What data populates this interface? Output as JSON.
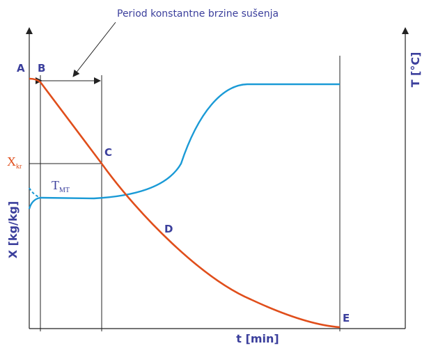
{
  "annotation": "Period konstantne brzine sušenja",
  "points": [
    {
      "label": "A"
    },
    {
      "label": "B"
    },
    {
      "label": "C"
    },
    {
      "label": "D"
    },
    {
      "label": "E"
    }
  ],
  "labels": {
    "x_kr": {
      "main": "X",
      "sub": "kr"
    },
    "t_mt": {
      "main": "T",
      "sub": "MT"
    }
  },
  "axes": {
    "left": "X [kg/kg]",
    "right": "T [°C]",
    "bottom": "t [min]"
  }
}
